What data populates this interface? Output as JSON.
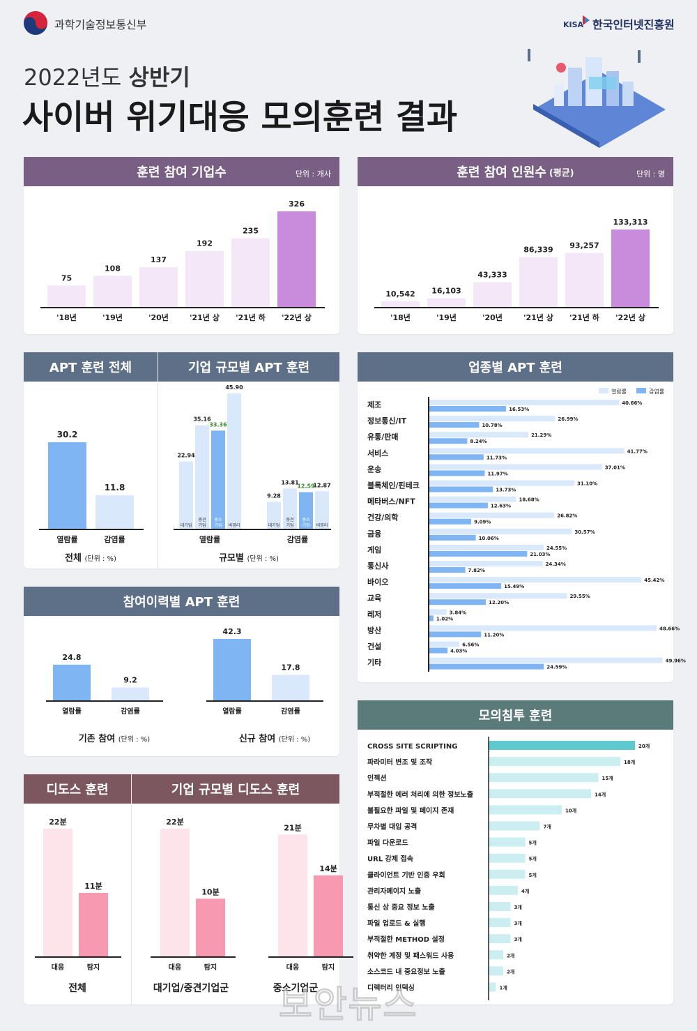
{
  "header": {
    "ministry": "과학기술정보통신부",
    "kisa_mark": "KISA",
    "agency": "한국인터넷진흥원",
    "year_line": "2022년도",
    "half": "상반기",
    "title": "사이버 위기대응 모의훈련 결과"
  },
  "colors": {
    "highlight_purple": "#c98bdc",
    "light_purple": "#f3e7f8",
    "open_blue": "#7eb5f2",
    "infect_blue": "#d9e9fb",
    "detect_pink": "#f799b0",
    "respond_pink": "#fde3ea",
    "teal_bar": "#5ec9ce",
    "light_teal": "#cdeef0"
  },
  "companies": {
    "title": "훈련 참여 기업수",
    "unit": "단위 : 개사",
    "chart_data": {
      "type": "bar",
      "categories": [
        "'18년",
        "'19년",
        "'20년",
        "'21년 상",
        "'21년 하",
        "'22년 상"
      ],
      "values": [
        75,
        108,
        137,
        192,
        235,
        326
      ],
      "labels": [
        "75",
        "108",
        "137",
        "192",
        "235",
        "326"
      ]
    }
  },
  "people": {
    "title": "훈련 참여 인원수",
    "title_note": "(평균)",
    "unit": "단위 : 명",
    "chart_data": {
      "type": "bar",
      "categories": [
        "'18년",
        "'19년",
        "'20년",
        "'21년 상",
        "'21년 하",
        "'22년 상"
      ],
      "values": [
        10542,
        16103,
        43333,
        86339,
        93257,
        133313
      ],
      "labels": [
        "10,542",
        "16,103",
        "43,333",
        "86,339",
        "93,257",
        "133,313"
      ]
    }
  },
  "apt_total": {
    "title": "APT 훈련 전체",
    "caption": "전체",
    "caption_unit": "(단위 : %)",
    "chart_data": {
      "type": "bar",
      "categories": [
        "열람률",
        "감염률"
      ],
      "values": [
        30.2,
        11.8
      ],
      "labels": [
        "30.2",
        "11.8"
      ]
    }
  },
  "apt_size": {
    "title": "기업 규모별 APT 훈련",
    "caption": "규모별",
    "caption_unit": "(단위 : %)",
    "chart_data": {
      "type": "bar",
      "groups": [
        "열람률",
        "감염률"
      ],
      "categories": [
        "대기업",
        "중견기업",
        "중소기업",
        "비영리"
      ],
      "category_labels": [
        "대기업",
        "중견\n기업",
        "중소\n기업",
        "비영리"
      ],
      "series": [
        {
          "values": [
            22.94,
            35.16,
            33.36,
            45.9
          ],
          "labels": [
            "22.94",
            "35.16",
            "33.36",
            "45.90"
          ]
        },
        {
          "values": [
            9.28,
            13.81,
            12.59,
            12.87
          ],
          "labels": [
            "9.28",
            "13.81",
            "12.59",
            "12.87"
          ]
        }
      ]
    }
  },
  "industry": {
    "title": "업종별 APT 훈련",
    "chart_data": {
      "type": "bar",
      "orientation": "horizontal",
      "legend": [
        "열람률",
        "감염률"
      ],
      "categories": [
        "제조",
        "정보통신/IT",
        "유통/판매",
        "서비스",
        "운송",
        "블록체인/핀테크",
        "메타버스/NFT",
        "건강/의학",
        "금융",
        "게임",
        "통신사",
        "바이오",
        "교육",
        "레저",
        "방산",
        "건설",
        "기타"
      ],
      "series": [
        {
          "name": "열람률",
          "values": [
            40.66,
            26.99,
            21.29,
            41.77,
            37.01,
            31.1,
            18.68,
            26.82,
            30.57,
            24.55,
            24.34,
            45.42,
            29.55,
            3.84,
            48.66,
            6.56,
            49.96
          ],
          "labels": [
            "40.66%",
            "26.99%",
            "21.29%",
            "41.77%",
            "37.01%",
            "31.10%",
            "18.68%",
            "26.82%",
            "30.57%",
            "24.55%",
            "24.34%",
            "45.42%",
            "29.55%",
            "3.84%",
            "48.66%",
            "6.56%",
            "49.96%"
          ]
        },
        {
          "name": "감염률",
          "values": [
            16.53,
            10.78,
            8.24,
            11.73,
            11.97,
            13.73,
            12.63,
            9.09,
            10.06,
            21.03,
            7.82,
            15.49,
            12.2,
            1.02,
            11.2,
            4.03,
            24.59
          ],
          "labels": [
            "16.53%",
            "10.78%",
            "8.24%",
            "11.73%",
            "11.97%",
            "13.73%",
            "12.63%",
            "9.09%",
            "10.06%",
            "21.03%",
            "7.82%",
            "15.49%",
            "12.20%",
            "1.02%",
            "11.20%",
            "4.03%",
            "24.59%"
          ]
        }
      ]
    }
  },
  "history": {
    "title": "참여이력별 APT 훈련",
    "left_caption": "기존 참여",
    "right_caption": "신규 참여",
    "caption_unit": "(단위 : %)",
    "chart_data": [
      {
        "type": "bar",
        "categories": [
          "열람률",
          "감염률"
        ],
        "values": [
          24.8,
          9.2
        ],
        "labels": [
          "24.8",
          "9.2"
        ]
      },
      {
        "type": "bar",
        "categories": [
          "열람률",
          "감염률"
        ],
        "values": [
          42.3,
          17.8
        ],
        "labels": [
          "42.3",
          "17.8"
        ]
      }
    ]
  },
  "pentest": {
    "title": "모의침투 훈련",
    "chart_data": {
      "type": "bar",
      "orientation": "horizontal",
      "categories": [
        "CROSS SITE SCRIPTING",
        "파라미터 변조 및 조작",
        "인젝션",
        "부적절한 에러 처리에 의한 정보노출",
        "불필요한 파일 및 페이지 존재",
        "무차별 대입 공격",
        "파일 다운로드",
        "URL 강제 접속",
        "클라이언트 기반 인증 우회",
        "관리자페이지 노출",
        "통신 상 중요 정보 노출",
        "파일 업로드 & 실행",
        "부적절한 METHOD 설정",
        "취약한 계정 및 패스워드 사용",
        "소스코드 내 중요정보 노출",
        "디렉터리 인덱싱"
      ],
      "values": [
        20,
        18,
        15,
        14,
        10,
        7,
        5,
        5,
        5,
        4,
        3,
        3,
        3,
        2,
        2,
        1
      ],
      "labels": [
        "20개",
        "18개",
        "15개",
        "14개",
        "10개",
        "7개",
        "5개",
        "5개",
        "5개",
        "4개",
        "3개",
        "3개",
        "3개",
        "2개",
        "2개",
        "1개"
      ]
    }
  },
  "ddos": {
    "title": "디도스 훈련",
    "caption": "전체",
    "chart_data": {
      "type": "bar",
      "categories": [
        "대응",
        "탐지"
      ],
      "values": [
        22,
        11
      ],
      "labels": [
        "22분",
        "11분"
      ]
    }
  },
  "ddos_size": {
    "title": "기업 규모별 디도스 훈련",
    "left_caption": "대기업/중견기업군",
    "right_caption": "중소기업군",
    "chart_data": [
      {
        "type": "bar",
        "categories": [
          "대응",
          "탐지"
        ],
        "values": [
          22,
          10
        ],
        "labels": [
          "22분",
          "10분"
        ]
      },
      {
        "type": "bar",
        "categories": [
          "대응",
          "탐지"
        ],
        "values": [
          21,
          14
        ],
        "labels": [
          "21분",
          "14분"
        ]
      }
    ]
  },
  "watermark": "보안뉴스"
}
